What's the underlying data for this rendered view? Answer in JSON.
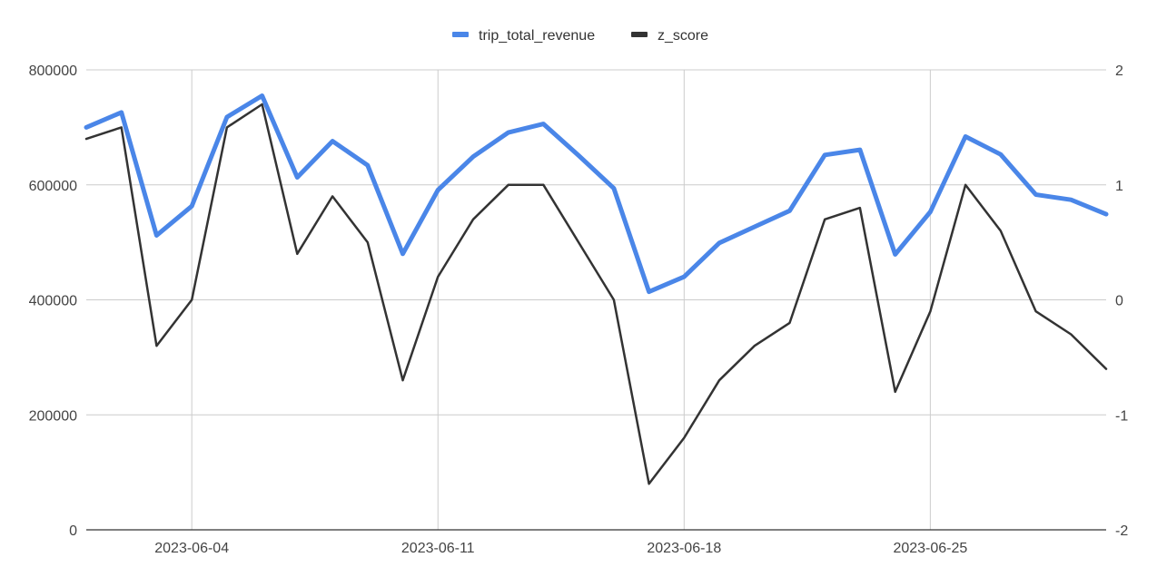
{
  "chart_data": {
    "type": "line",
    "title": "",
    "xlabel": "",
    "ylabel": "",
    "x": [
      "2023-06-01",
      "2023-06-02",
      "2023-06-03",
      "2023-06-04",
      "2023-06-05",
      "2023-06-06",
      "2023-06-07",
      "2023-06-08",
      "2023-06-09",
      "2023-06-10",
      "2023-06-11",
      "2023-06-12",
      "2023-06-13",
      "2023-06-14",
      "2023-06-15",
      "2023-06-16",
      "2023-06-17",
      "2023-06-18",
      "2023-06-19",
      "2023-06-20",
      "2023-06-21",
      "2023-06-22",
      "2023-06-23",
      "2023-06-24",
      "2023-06-25",
      "2023-06-26",
      "2023-06-27",
      "2023-06-28",
      "2023-06-29",
      "2023-06-30"
    ],
    "x_ticks": [
      "2023-06-04",
      "2023-06-11",
      "2023-06-18",
      "2023-06-25"
    ],
    "y_left": {
      "ylim": [
        0,
        800000
      ],
      "ticks": [
        "800000",
        "600000",
        "400000",
        "200000",
        "0"
      ],
      "tick_values": [
        800000,
        600000,
        400000,
        200000,
        0
      ]
    },
    "y_right": {
      "ylim": [
        -2,
        2
      ],
      "ticks": [
        "2",
        "1",
        "0",
        "-1",
        "-2"
      ],
      "tick_values": [
        2,
        1,
        0,
        -1,
        -2
      ]
    },
    "grid": true,
    "legend_position": "top-center",
    "series": [
      {
        "name": "trip_total_revenue",
        "axis": "left",
        "color": "#4a86e8",
        "values": [
          700000,
          726000,
          512000,
          563000,
          718000,
          755000,
          613000,
          676000,
          634000,
          480000,
          591000,
          649000,
          691000,
          706000,
          651000,
          594000,
          414000,
          440000,
          499000,
          527000,
          555000,
          652000,
          661000,
          479000,
          553000,
          684000,
          653000,
          583000,
          574000,
          549000
        ]
      },
      {
        "name": "z_score",
        "axis": "right",
        "color": "#333333",
        "values": [
          1.4,
          1.5,
          -0.4,
          0.0,
          1.5,
          1.7,
          0.4,
          0.9,
          0.5,
          -0.7,
          0.2,
          0.7,
          1.0,
          1.0,
          0.5,
          0.0,
          -1.6,
          -1.2,
          -0.7,
          -0.4,
          -0.2,
          0.7,
          0.8,
          -0.8,
          -0.1,
          1.0,
          0.6,
          -0.1,
          -0.3,
          -0.6
        ]
      }
    ]
  }
}
